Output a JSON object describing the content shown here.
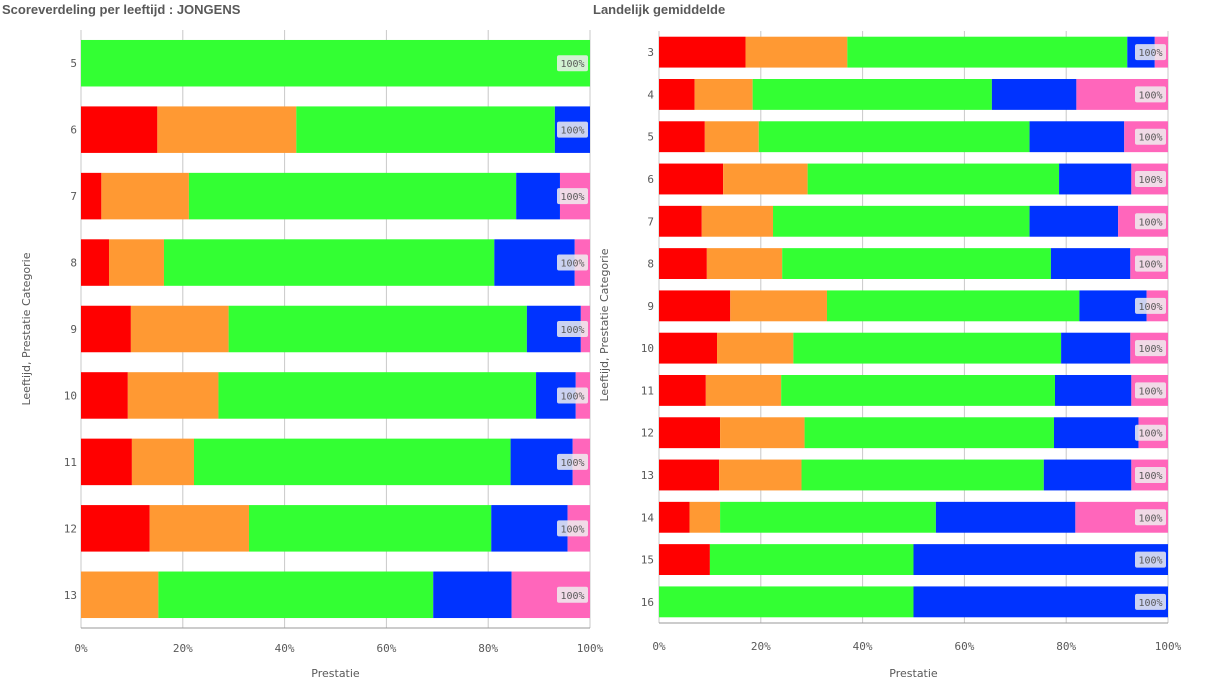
{
  "chart_data": [
    {
      "type": "bar",
      "orientation": "horizontal",
      "stacked": "percent",
      "title": "Scoreverdeling per leeftijd : JONGENS",
      "xlabel": "Prestatie",
      "ylabel": "Leeftijd, Prestatie Categorie",
      "xlim": [
        0,
        1
      ],
      "x_ticks": [
        "0%",
        "20%",
        "40%",
        "60%",
        "80%",
        "100%"
      ],
      "grid": true,
      "categories": [
        "5",
        "6",
        "7",
        "8",
        "9",
        "10",
        "11",
        "12",
        "13"
      ],
      "total_labels": [
        "100%",
        "100%",
        "100%",
        "100%",
        "100%",
        "100%",
        "100%",
        "100%",
        "100%"
      ],
      "series": [
        {
          "color": "#ff0000",
          "values": [
            0,
            15,
            4,
            5.5,
            9.8,
            9.2,
            10,
            13.5,
            0
          ]
        },
        {
          "color": "#ff9933",
          "values": [
            0,
            27.3,
            17.2,
            10.8,
            19.2,
            17.8,
            12.2,
            19.5,
            15.2
          ]
        },
        {
          "color": "#33ff33",
          "values": [
            100,
            50.8,
            64.3,
            64.9,
            58.6,
            62.4,
            62.2,
            47.6,
            54
          ]
        },
        {
          "color": "#0033ff",
          "values": [
            0,
            6.9,
            8.6,
            15.8,
            10.6,
            7.8,
            12.2,
            15,
            15.4
          ]
        },
        {
          "color": "#ff66bb",
          "values": [
            0,
            0,
            5.9,
            3,
            1.8,
            2.8,
            3.4,
            4.4,
            15.4
          ]
        }
      ]
    },
    {
      "type": "bar",
      "orientation": "horizontal",
      "stacked": "percent",
      "title": "Landelijk gemiddelde",
      "xlabel": "Prestatie",
      "ylabel": "Leeftijd, Prestatie Categorie",
      "xlim": [
        0,
        1
      ],
      "x_ticks": [
        "0%",
        "20%",
        "40%",
        "60%",
        "80%",
        "100%"
      ],
      "grid": true,
      "categories": [
        "3",
        "4",
        "5",
        "6",
        "7",
        "8",
        "9",
        "10",
        "11",
        "12",
        "13",
        "14",
        "15",
        "16"
      ],
      "total_labels": [
        "100%",
        "100%",
        "100%",
        "100%",
        "100%",
        "100%",
        "100%",
        "100%",
        "100%",
        "100%",
        "100%",
        "100%",
        "100%",
        "100%"
      ],
      "series": [
        {
          "color": "#ff0000",
          "values": [
            17,
            7,
            9,
            12.6,
            8.4,
            9.4,
            14,
            11.4,
            9.2,
            12,
            11.8,
            6,
            10,
            0
          ]
        },
        {
          "color": "#ff9933",
          "values": [
            20,
            11.4,
            10.6,
            16.6,
            14,
            14.8,
            19,
            15,
            14.8,
            16.6,
            16.2,
            6,
            0,
            0
          ]
        },
        {
          "color": "#33ff33",
          "values": [
            55,
            47,
            53.2,
            49.4,
            50.4,
            52.8,
            49.6,
            52.6,
            53.8,
            49,
            47.6,
            42.4,
            40,
            50
          ]
        },
        {
          "color": "#0033ff",
          "values": [
            5.4,
            16.6,
            18.6,
            14.2,
            17.4,
            15.6,
            13.2,
            13.6,
            15,
            16.6,
            17.2,
            27.4,
            50,
            50
          ]
        },
        {
          "color": "#ff66bb",
          "values": [
            2.6,
            18,
            8.6,
            7.2,
            9.8,
            7.4,
            4.2,
            7.4,
            7.2,
            5.8,
            7.2,
            18.2,
            0,
            0
          ]
        }
      ]
    }
  ]
}
